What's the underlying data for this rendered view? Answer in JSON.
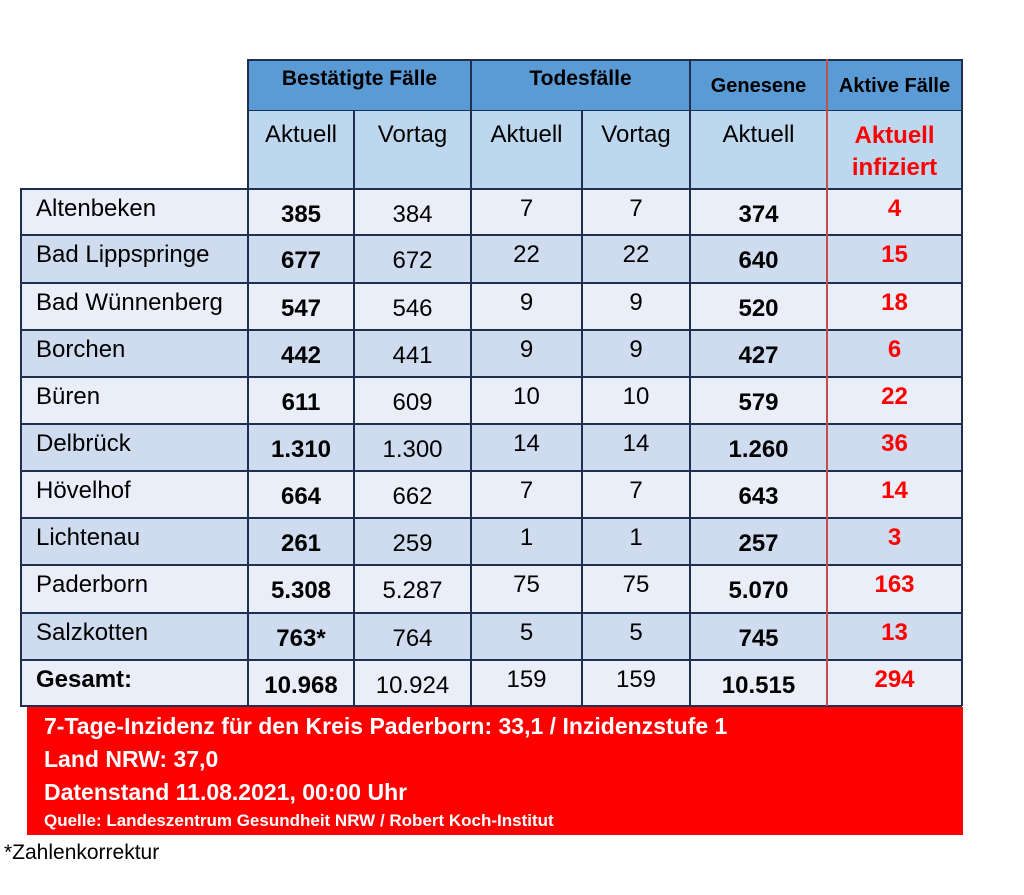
{
  "headers": {
    "bestaetigte": "Bestätigte Fälle",
    "todesfaelle": "Todesfälle",
    "genesene": "Genesene",
    "aktive": "Aktive Fälle"
  },
  "subheaders": {
    "b_aktuell": "Aktuell",
    "b_vortag": "Vortag",
    "t_aktuell": "Aktuell",
    "t_vortag": "Vortag",
    "g_aktuell": "Aktuell",
    "a_aktuell": "Aktuell",
    "a_infiziert": "infiziert"
  },
  "rows": [
    {
      "name": "Altenbeken",
      "b_aktuell": "385",
      "b_vortag": "384",
      "t_aktuell": "7",
      "t_vortag": "7",
      "genesene": "374",
      "aktive": "4"
    },
    {
      "name": "Bad Lippspringe",
      "b_aktuell": "677",
      "b_vortag": "672",
      "t_aktuell": "22",
      "t_vortag": "22",
      "genesene": "640",
      "aktive": "15"
    },
    {
      "name": "Bad Wünnenberg",
      "b_aktuell": "547",
      "b_vortag": "546",
      "t_aktuell": "9",
      "t_vortag": "9",
      "genesene": "520",
      "aktive": "18"
    },
    {
      "name": "Borchen",
      "b_aktuell": "442",
      "b_vortag": "441",
      "t_aktuell": "9",
      "t_vortag": "9",
      "genesene": "427",
      "aktive": "6"
    },
    {
      "name": "Büren",
      "b_aktuell": "611",
      "b_vortag": "609",
      "t_aktuell": "10",
      "t_vortag": "10",
      "genesene": "579",
      "aktive": "22"
    },
    {
      "name": "Delbrück",
      "b_aktuell": "1.310",
      "b_vortag": "1.300",
      "t_aktuell": "14",
      "t_vortag": "14",
      "genesene": "1.260",
      "aktive": "36"
    },
    {
      "name": "Hövelhof",
      "b_aktuell": "664",
      "b_vortag": "662",
      "t_aktuell": "7",
      "t_vortag": "7",
      "genesene": "643",
      "aktive": "14"
    },
    {
      "name": "Lichtenau",
      "b_aktuell": "261",
      "b_vortag": "259",
      "t_aktuell": "1",
      "t_vortag": "1",
      "genesene": "257",
      "aktive": "3"
    },
    {
      "name": "Paderborn",
      "b_aktuell": "5.308",
      "b_vortag": "5.287",
      "t_aktuell": "75",
      "t_vortag": "75",
      "genesene": "5.070",
      "aktive": "163"
    },
    {
      "name": "Salzkotten",
      "b_aktuell": "763*",
      "b_vortag": "764",
      "t_aktuell": "5",
      "t_vortag": "5",
      "genesene": "745",
      "aktive": "13"
    },
    {
      "name": "Gesamt:",
      "b_aktuell": "10.968",
      "b_vortag": "10.924",
      "t_aktuell": "159",
      "t_vortag": "159",
      "genesene": "10.515",
      "aktive": "294"
    }
  ],
  "info": {
    "line1": "7-Tage-Inzidenz für den Kreis Paderborn: 33,1 / Inzidenzstufe 1",
    "line2": "Land NRW: 37,0",
    "line3": "Datenstand 11.08.2021, 00:00 Uhr",
    "source": "Quelle: Landeszentrum Gesundheit NRW / Robert Koch-Institut"
  },
  "footnote": "*Zahlenkorrektur",
  "colors": {
    "header_blue": "#5b9bd5",
    "subheader_blue": "#bdd7ee",
    "row_light": "#e9eef8",
    "row_mid": "#cfdbef",
    "accent_red": "#ff0000"
  }
}
